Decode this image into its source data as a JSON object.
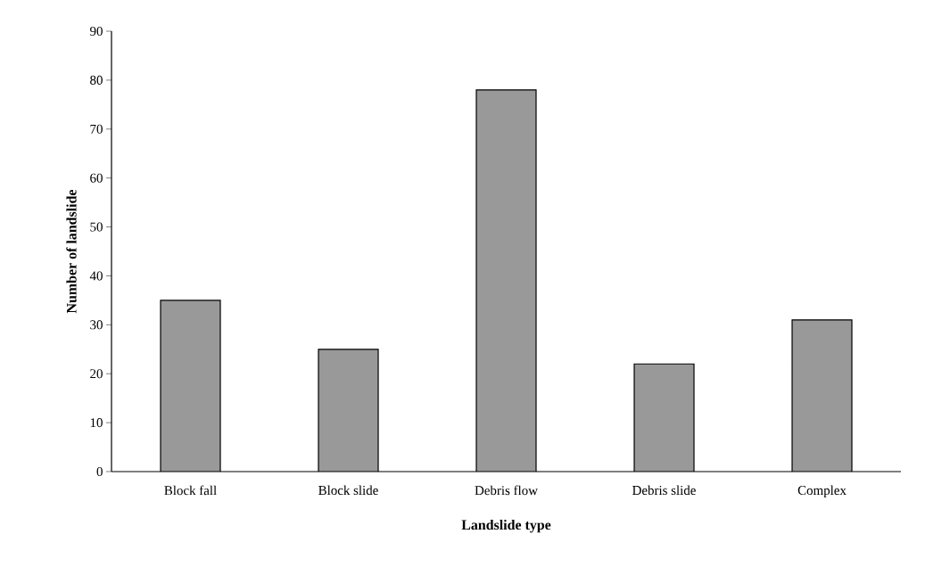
{
  "chart_data": {
    "type": "bar",
    "xlabel": "Landslide type",
    "ylabel": "Number of landslide",
    "categories": [
      "Block fall",
      "Block slide",
      "Debris flow",
      "Debris slide",
      "Complex"
    ],
    "values": [
      35,
      25,
      78,
      22,
      31
    ],
    "color": "#999999",
    "ylim": [
      0,
      90
    ],
    "yticks": [
      0,
      10,
      20,
      30,
      40,
      50,
      60,
      70,
      80,
      90
    ],
    "grid": false
  }
}
